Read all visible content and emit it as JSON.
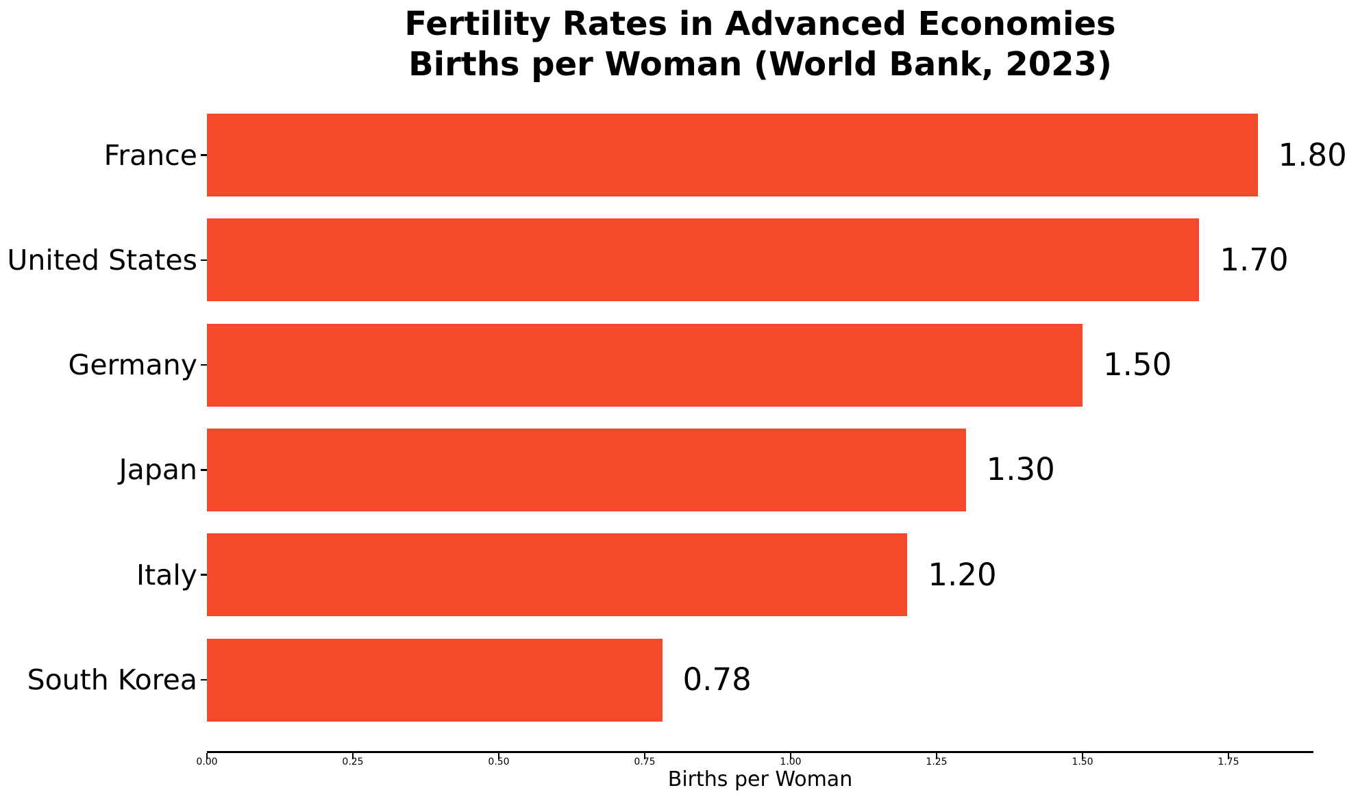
{
  "page": {
    "background_color": "#ffffff",
    "text_color": "#000000"
  },
  "chart_data": {
    "type": "bar",
    "orientation": "horizontal",
    "title_line1": "Fertility Rates in Advanced Economies",
    "title_line2": "Births per Woman (World Bank, 2023)",
    "xlabel": "Births per Woman",
    "categories": [
      "France",
      "United States",
      "Germany",
      "Japan",
      "Italy",
      "South Korea"
    ],
    "values": [
      1.8,
      1.7,
      1.5,
      1.3,
      1.2,
      0.78
    ],
    "value_labels": [
      "1.80",
      "1.70",
      "1.50",
      "1.30",
      "1.20",
      "0.78"
    ],
    "xlim": [
      0,
      1.89
    ],
    "xticks": [
      0,
      0.25,
      0.5,
      0.75,
      1.0,
      1.25,
      1.5,
      1.75
    ],
    "xtick_labels": [
      "0.00",
      "0.25",
      "0.50",
      "0.75",
      "1.00",
      "1.25",
      "1.50",
      "1.75"
    ],
    "bar_color": "#F24A2B",
    "grid": false,
    "legend_position": "none"
  }
}
